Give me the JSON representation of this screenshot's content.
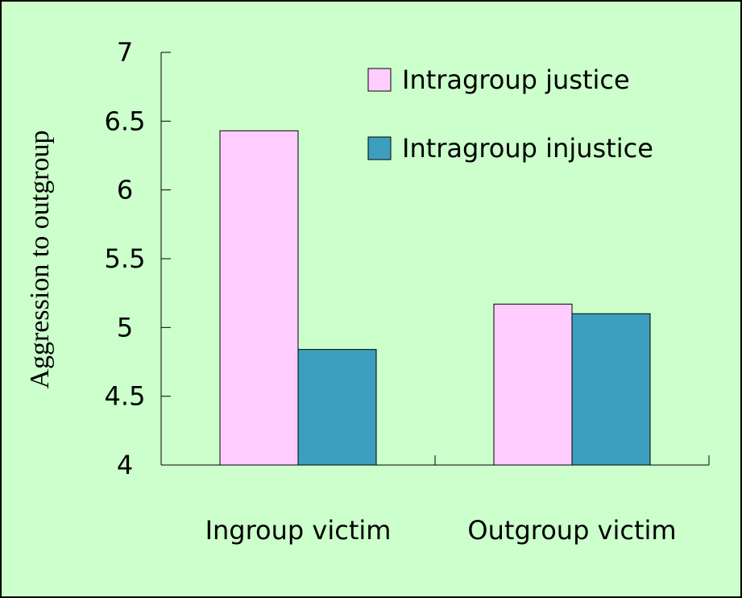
{
  "chart_data": {
    "type": "bar",
    "ylabel": "Aggression to outgroup",
    "categories": [
      "Ingroup victim",
      "Outgroup victim"
    ],
    "series": [
      {
        "name": "Intragroup justice",
        "color": "#ffccff",
        "values": [
          6.43,
          5.17
        ]
      },
      {
        "name": "Intragroup injustice",
        "color": "#3c9fbf",
        "values": [
          4.84,
          5.1
        ]
      }
    ],
    "ylim": [
      4,
      7
    ],
    "yticks": [
      4,
      4.5,
      5,
      5.5,
      6,
      6.5,
      7
    ],
    "legend": "upper right",
    "grid": false
  }
}
